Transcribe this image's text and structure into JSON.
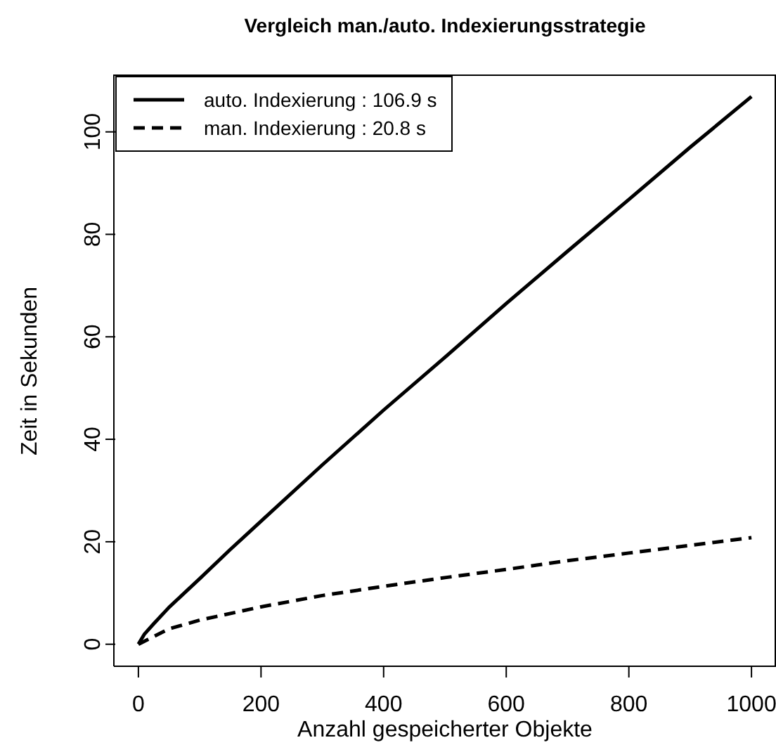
{
  "chart_data": {
    "type": "line",
    "title": "Vergleich man./auto. Indexierungsstrategie",
    "xlabel": "Anzahl gespeicherter Objekte",
    "ylabel": "Zeit in Sekunden",
    "series": [
      {
        "name": "auto. Indexierung : 106.9 s",
        "color": "#000000",
        "line_style": "solid",
        "x": [
          0,
          10,
          25,
          50,
          100,
          150,
          200,
          300,
          400,
          500,
          600,
          700,
          800,
          900,
          1000
        ],
        "values": [
          0,
          2,
          4,
          7.2,
          12.8,
          18.5,
          24,
          35,
          45.7,
          56,
          66.5,
          76.7,
          86.8,
          97,
          106.9
        ]
      },
      {
        "name": "man. Indexierung : 20.8 s",
        "color": "#000000",
        "line_style": "dashed",
        "x": [
          0,
          50,
          100,
          200,
          300,
          400,
          500,
          600,
          700,
          800,
          900,
          1000
        ],
        "values": [
          0,
          3,
          4.7,
          7.3,
          9.5,
          11.3,
          13,
          14.6,
          16.3,
          17.8,
          19.3,
          20.8
        ]
      }
    ],
    "xlim": [
      -40,
      1040
    ],
    "xticks": [
      0,
      200,
      400,
      600,
      800,
      1000
    ],
    "ylim": [
      -4.3,
      111.2
    ],
    "yticks": [
      0,
      20,
      40,
      60,
      80,
      100
    ],
    "grid": false,
    "legend": "top left",
    "marker": "none"
  }
}
